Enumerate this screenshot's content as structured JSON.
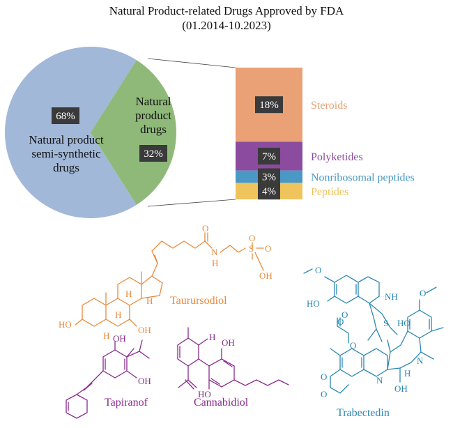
{
  "title": "Natural Product-related Drugs Approved by FDA",
  "subtitle": "(01.2014-10.2023)",
  "colors": {
    "semi_synthetic": "#a2b8d8",
    "natural": "#8fb979",
    "steroids": "#e9a175",
    "polyketides": "#8b4b9e",
    "nonribosomal": "#4a98c6",
    "peptides": "#f0c45c",
    "label_box": "#3a3a3a",
    "taurursodiol": "#e88a3c",
    "tapiranof": "#8a2a8e",
    "cannabidiol": "#8a2a8e",
    "trabectedin": "#2a87b3"
  },
  "chart_data": [
    {
      "type": "pie",
      "slices": [
        {
          "label_lines": [
            "Natural product",
            "semi-synthetic",
            "drugs"
          ],
          "value": 68,
          "value_label": "68%"
        },
        {
          "label_lines": [
            "Natural",
            "product",
            "drugs"
          ],
          "value": 32,
          "value_label": "32%"
        }
      ]
    },
    {
      "type": "bar",
      "stacked": true,
      "segments": [
        {
          "category": "Steroids",
          "value": 18,
          "value_label": "18%"
        },
        {
          "category": "Polyketides",
          "value": 7,
          "value_label": "7%"
        },
        {
          "category": "Nonribosomal peptides",
          "value": 3,
          "value_label": "3%"
        },
        {
          "category": "Peptides",
          "value": 4,
          "value_label": "4%"
        }
      ]
    }
  ],
  "molecules": {
    "taurursodiol": {
      "name": "Taurursodiol",
      "atoms": [
        "HO",
        "H",
        "H",
        "H",
        "H",
        "OH",
        "O",
        "N",
        "H",
        "S",
        "O",
        "O",
        "OH"
      ]
    },
    "tapiranof": {
      "name": "Tapiranof",
      "atoms": [
        "OH",
        "OH"
      ]
    },
    "cannabidiol": {
      "name": "Cannabidiol",
      "atoms": [
        "H",
        "OH",
        "HO"
      ]
    },
    "trabectedin": {
      "name": "Trabectedin",
      "atoms": [
        "O",
        "HO",
        "NH",
        "O",
        "O",
        "S",
        "O",
        "HO",
        "O",
        "O",
        "O",
        "N",
        "N",
        "H",
        "OH"
      ]
    }
  }
}
